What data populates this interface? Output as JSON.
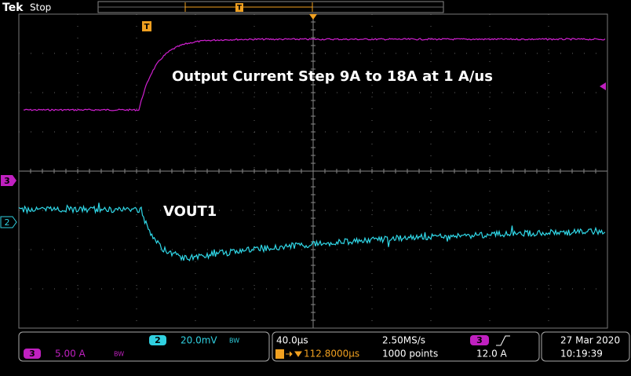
{
  "header": {
    "brand": "Tek",
    "status": "Stop",
    "trigger_marker": "T"
  },
  "screen": {
    "trigger_marker": "T",
    "ch3_marker": "3",
    "ch2_marker": "2",
    "annotations": [
      "Output Current Step 9A to 18A at 1 A/us",
      "VOUT1"
    ]
  },
  "readout": {
    "ch2": {
      "channel": "2",
      "scale": "20.0mV",
      "bandwidth": "BW"
    },
    "ch3": {
      "channel": "3",
      "scale": "5.00 A",
      "bandwidth": "BW"
    },
    "timebase": "40.0µs",
    "trigger_position": "112.8000µs",
    "sample_rate": "2.50MS/s",
    "record_length": "1000 points",
    "trigger": {
      "source": "3",
      "level": "12.0 A"
    },
    "date": "27 Mar  2020",
    "time": "10:19:39"
  }
}
